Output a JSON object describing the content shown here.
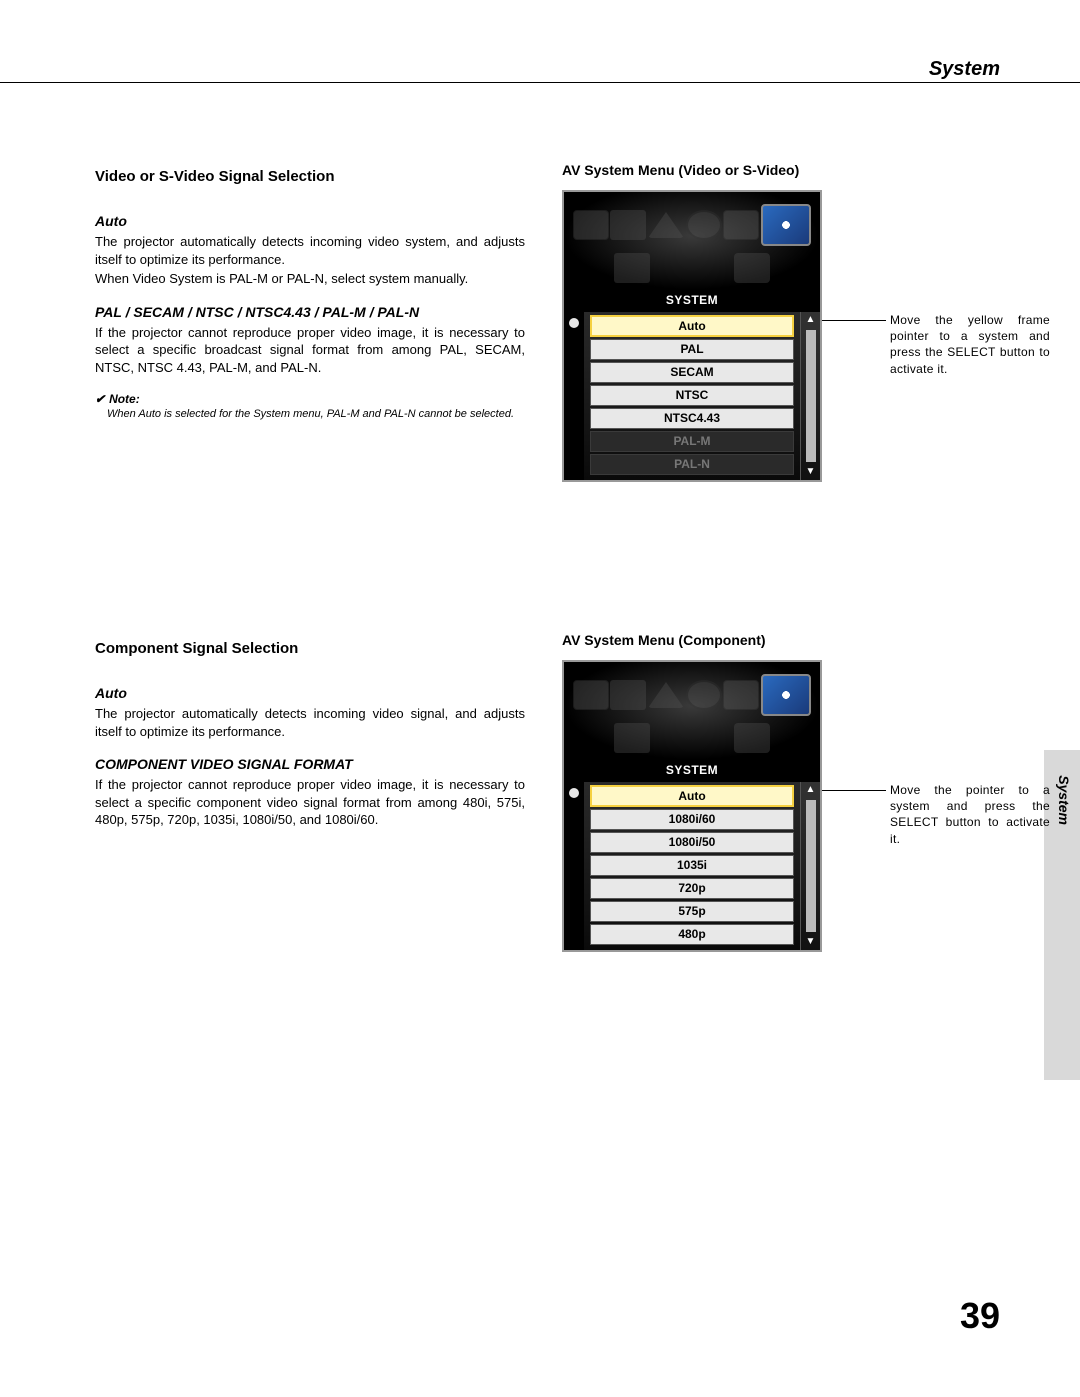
{
  "header": {
    "title": "System",
    "side_tab": "System",
    "page_number": "39"
  },
  "section1": {
    "title": "Video or S-Video Signal Selection",
    "auto_label": "Auto",
    "auto_body1": "The projector automatically detects incoming video system, and adjusts itself to optimize its performance.",
    "auto_body2": "When Video System is PAL-M or PAL-N, select system manually.",
    "formats_label": "PAL / SECAM / NTSC / NTSC4.43 / PAL-M / PAL-N",
    "formats_body": "If the projector cannot reproduce proper video image, it is necessary to select a specific broadcast signal format from among PAL, SECAM, NTSC, NTSC 4.43, PAL-M, and PAL-N.",
    "note_label": "Note:",
    "note_body": "When Auto is selected for the System menu, PAL-M and PAL-N cannot be selected."
  },
  "section2": {
    "title": "Component Signal Selection",
    "auto_label": "Auto",
    "auto_body": "The projector automatically detects incoming video signal, and adjusts itself to optimize its performance.",
    "formats_label": "COMPONENT VIDEO SIGNAL FORMAT",
    "formats_body": "If the projector cannot reproduce proper video image, it is necessary to select a specific component video signal format from among 480i, 575i, 480p, 575p, 720p, 1035i, 1080i/50, and 1080i/60."
  },
  "menu1": {
    "title": "AV System Menu (Video or S-Video)",
    "system_label": "SYSTEM",
    "items": [
      {
        "label": "Auto",
        "state": "selected"
      },
      {
        "label": "PAL",
        "state": "normal"
      },
      {
        "label": "SECAM",
        "state": "normal"
      },
      {
        "label": "NTSC",
        "state": "normal"
      },
      {
        "label": "NTSC4.43",
        "state": "normal"
      },
      {
        "label": "PAL-M",
        "state": "disabled"
      },
      {
        "label": "PAL-N",
        "state": "disabled"
      }
    ],
    "callout": "Move the yellow frame pointer to a system and press the SELECT button to activate it."
  },
  "menu2": {
    "title": "AV System Menu (Component)",
    "system_label": "SYSTEM",
    "items": [
      {
        "label": "Auto",
        "state": "selected"
      },
      {
        "label": "1080i/60",
        "state": "normal"
      },
      {
        "label": "1080i/50",
        "state": "normal"
      },
      {
        "label": "1035i",
        "state": "normal"
      },
      {
        "label": "720p",
        "state": "normal"
      },
      {
        "label": "575p",
        "state": "normal"
      },
      {
        "label": "480p",
        "state": "normal"
      }
    ],
    "callout": "Move the pointer to a system and press the SELECT button to activate it."
  }
}
